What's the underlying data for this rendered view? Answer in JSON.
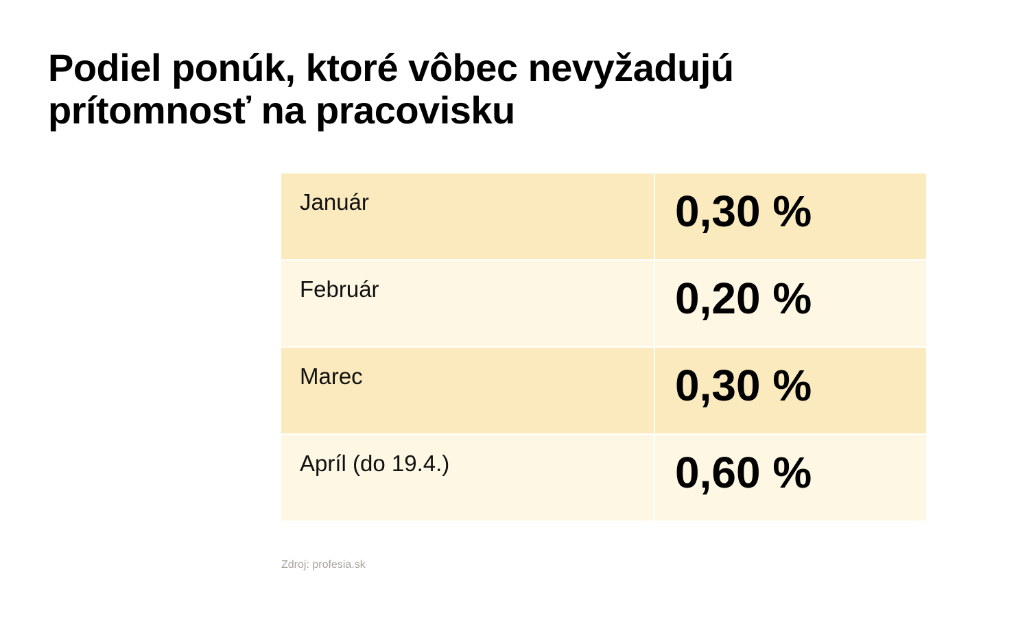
{
  "title_lines": [
    "Podiel ponúk, ktoré vôbec nevyžadujú",
    "prítomnosť na pracovisku"
  ],
  "source": "Zdroj: profesia.sk",
  "colors": {
    "row_dark": "#fbeabd",
    "row_light": "#fef7e3",
    "source_text": "#a7a39b"
  },
  "chart_data": {
    "type": "table",
    "title": "Podiel ponúk, ktoré vôbec nevyžadujú prítomnosť na pracovisku",
    "rows": [
      {
        "label": "Január",
        "value": 0.3,
        "display": "0,30 %"
      },
      {
        "label": "Február",
        "value": 0.2,
        "display": "0,20 %"
      },
      {
        "label": "Marec",
        "value": 0.3,
        "display": "0,30 %"
      },
      {
        "label": "Apríl (do 19.4.)",
        "value": 0.6,
        "display": "0,60 %"
      }
    ]
  }
}
